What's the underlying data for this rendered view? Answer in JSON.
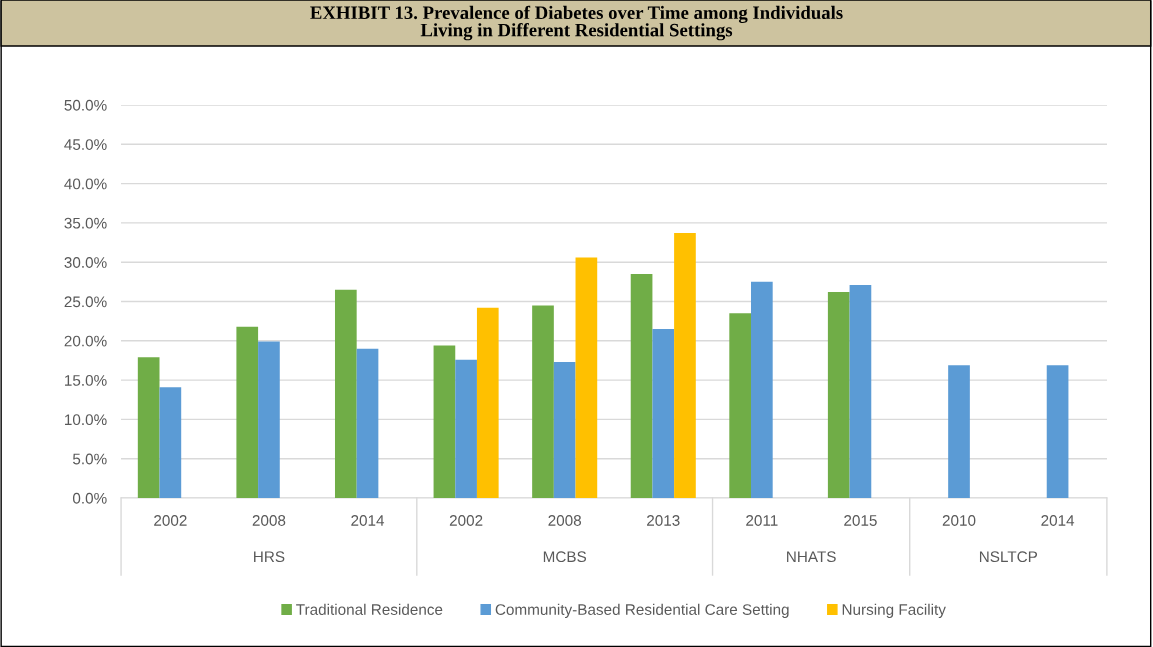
{
  "chart_data": {
    "type": "bar",
    "title": "EXHIBIT 13. Prevalence of Diabetes over Time among Individuals\nLiving in Different Residential Settings",
    "categories": [
      "2002",
      "2008",
      "2014",
      "2002",
      "2008",
      "2013",
      "2011",
      "2015",
      "2010",
      "2014"
    ],
    "series": [
      {
        "name": "Traditional Residence",
        "color": "#70ad47",
        "values": [
          17.9,
          21.8,
          26.5,
          19.4,
          24.5,
          28.5,
          23.5,
          26.2,
          null,
          null
        ]
      },
      {
        "name": "Community-Based Residential Care Setting",
        "color": "#5b9bd5",
        "values": [
          14.1,
          19.9,
          19.0,
          17.6,
          17.3,
          21.5,
          27.5,
          27.1,
          16.9,
          16.9
        ]
      },
      {
        "name": "Nursing Facility",
        "color": "#ffc000",
        "values": [
          null,
          null,
          null,
          24.2,
          30.6,
          33.7,
          null,
          null,
          null,
          null
        ]
      }
    ],
    "annotations": [
      "HRS",
      "MCBS",
      "NHATS",
      "NSLTCP"
    ],
    "ylim": [
      0,
      50
    ],
    "yticks": [
      {
        "value": 0,
        "label": "0.0%"
      },
      {
        "value": 5,
        "label": "5.0%"
      },
      {
        "value": 10,
        "label": "10.0%"
      },
      {
        "value": 15,
        "label": "15.0%"
      },
      {
        "value": 20,
        "label": "20.0%"
      },
      {
        "value": 25,
        "label": "25.0%"
      },
      {
        "value": 30,
        "label": "30.0%"
      },
      {
        "value": 35,
        "label": "35.0%"
      },
      {
        "value": 40,
        "label": "40.0%"
      },
      {
        "value": 45,
        "label": "45.0%"
      },
      {
        "value": 50,
        "label": "50.0%"
      }
    ],
    "grid": "y",
    "legend": "bottom"
  }
}
